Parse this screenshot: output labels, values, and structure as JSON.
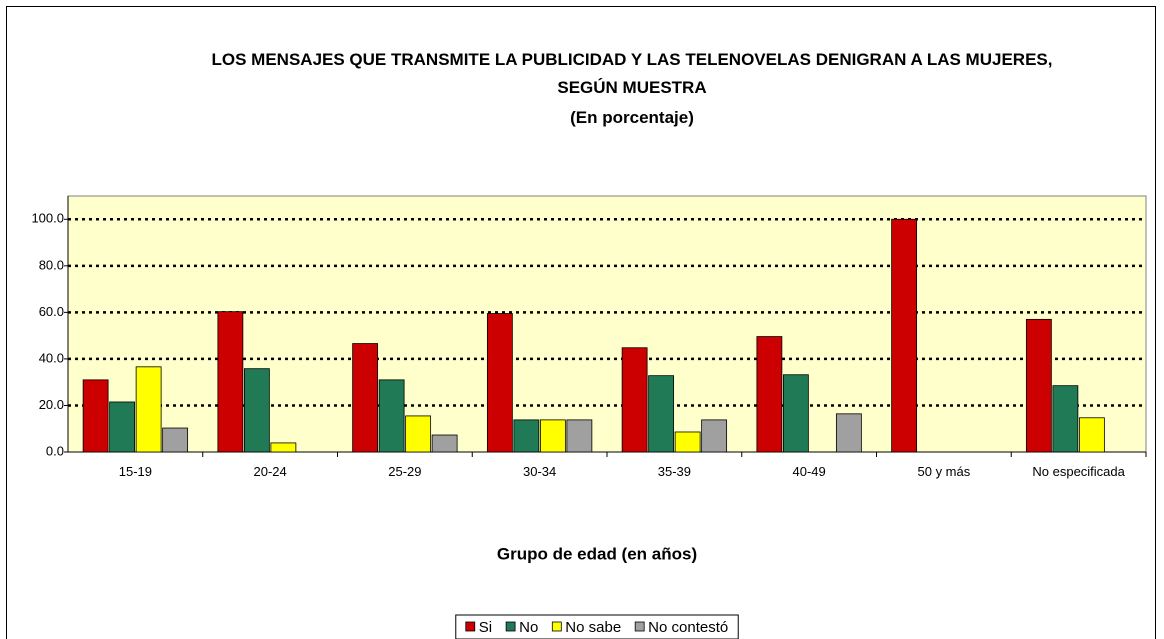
{
  "chart_data": {
    "type": "bar",
    "title": "LOS MENSAJES QUE TRANSMITE LA PUBLICIDAD Y LAS TELENOVELAS DENIGRAN A LAS MUJERES, SEGÚN MUESTRA",
    "subtitle": "(En porcentaje)",
    "x_label": "Grupo de edad (en años)",
    "categories": [
      "15-19",
      "20-24",
      "25-29",
      "30-34",
      "35-39",
      "40-49",
      "50 y más",
      "No especificada"
    ],
    "series": [
      {
        "name": "Si",
        "color": "#cc0000",
        "values": [
          31,
          60.3,
          46.6,
          59.5,
          44.8,
          49.6,
          100,
          57
        ]
      },
      {
        "name": "No",
        "color": "#1f7a55",
        "values": [
          21.5,
          35.8,
          31,
          13.8,
          32.8,
          33.2,
          0,
          28.5
        ]
      },
      {
        "name": "No sabe",
        "color": "#ffff00",
        "values": [
          36.6,
          3.9,
          15.5,
          13.8,
          8.6,
          0,
          0,
          14.7
        ]
      },
      {
        "name": "No contestó",
        "color": "#a0a0a0",
        "values": [
          10.3,
          0,
          7.3,
          13.8,
          13.8,
          16.4,
          0,
          0
        ]
      }
    ],
    "ylim": [
      0,
      110
    ],
    "yticks": [
      {
        "value": 0,
        "label": "0.0"
      },
      {
        "value": 20,
        "label": "20.0"
      },
      {
        "value": 40,
        "label": "40.0"
      },
      {
        "value": 60,
        "label": "60.0"
      },
      {
        "value": 80,
        "label": "80.0"
      },
      {
        "value": 100,
        "label": "100.0"
      }
    ],
    "grid": true,
    "legend": "bottom"
  }
}
